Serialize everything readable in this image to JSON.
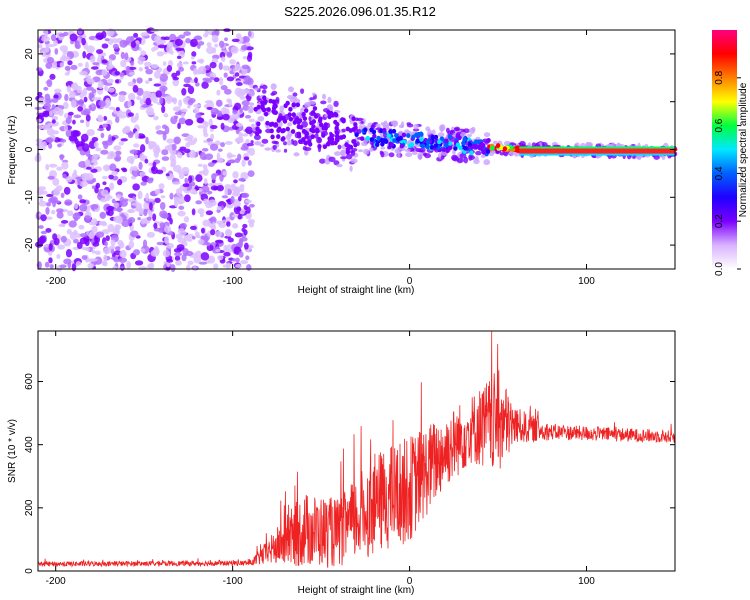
{
  "title": "S225.2026.096.01.35.R12",
  "chart_data": [
    {
      "type": "heatmap",
      "name": "spectrogram",
      "xlabel": "Height of straight line (km)",
      "ylabel": "Frequency (Hz)",
      "xlim": [
        -210,
        150
      ],
      "ylim": [
        -25,
        25
      ],
      "xticks": [
        -200,
        -100,
        0,
        100
      ],
      "yticks": [
        -20,
        -10,
        0,
        10,
        20
      ],
      "colorbar": {
        "label": "Normalized spectral amplitude",
        "range": [
          0,
          1
        ],
        "ticks": [
          "0.0",
          "0.2",
          "0.4",
          "0.6",
          "0.8"
        ],
        "colors": [
          "#ffffff",
          "#d9b3ff",
          "#7a00ff",
          "#1f00ff",
          "#0060ff",
          "#00e8ff",
          "#00ff40",
          "#ffff00",
          "#ff8000",
          "#ff0000",
          "#ff0080"
        ]
      },
      "features": {
        "noise_region_km": [
          -210,
          -97
        ],
        "carrier_track": [
          {
            "x": -85,
            "f": 7
          },
          {
            "x": -55,
            "f": 5
          },
          {
            "x": -35,
            "f": 3
          },
          {
            "x": 0,
            "f": 2
          },
          {
            "x": 25,
            "f": 1
          },
          {
            "x": 45,
            "f": 0.5
          },
          {
            "x": 65,
            "f": 0
          },
          {
            "x": 150,
            "f": -0.5
          }
        ]
      }
    },
    {
      "type": "line",
      "name": "snr",
      "xlabel": "Height of straight line (km)",
      "ylabel": "SNR (10 * v/v)",
      "xlim": [
        -210,
        150
      ],
      "ylim": [
        0,
        760
      ],
      "xticks": [
        -200,
        -100,
        0,
        100
      ],
      "yticks": [
        0,
        200,
        400,
        600
      ],
      "color": "#ee2222",
      "envelope": [
        {
          "x": -210,
          "mean": 22,
          "noise": 8
        },
        {
          "x": -90,
          "mean": 25,
          "noise": 8
        },
        {
          "x": -80,
          "mean": 60,
          "noise": 40
        },
        {
          "x": -60,
          "mean": 130,
          "noise": 120
        },
        {
          "x": -40,
          "mean": 120,
          "noise": 110
        },
        {
          "x": -20,
          "mean": 210,
          "noise": 160
        },
        {
          "x": 0,
          "mean": 260,
          "noise": 170
        },
        {
          "x": 20,
          "mean": 380,
          "noise": 120
        },
        {
          "x": 35,
          "mean": 450,
          "noise": 110
        },
        {
          "x": 50,
          "mean": 470,
          "noise": 170
        },
        {
          "x": 60,
          "mean": 460,
          "noise": 60
        },
        {
          "x": 80,
          "mean": 440,
          "noise": 25
        },
        {
          "x": 150,
          "mean": 425,
          "noise": 20
        }
      ]
    }
  ]
}
